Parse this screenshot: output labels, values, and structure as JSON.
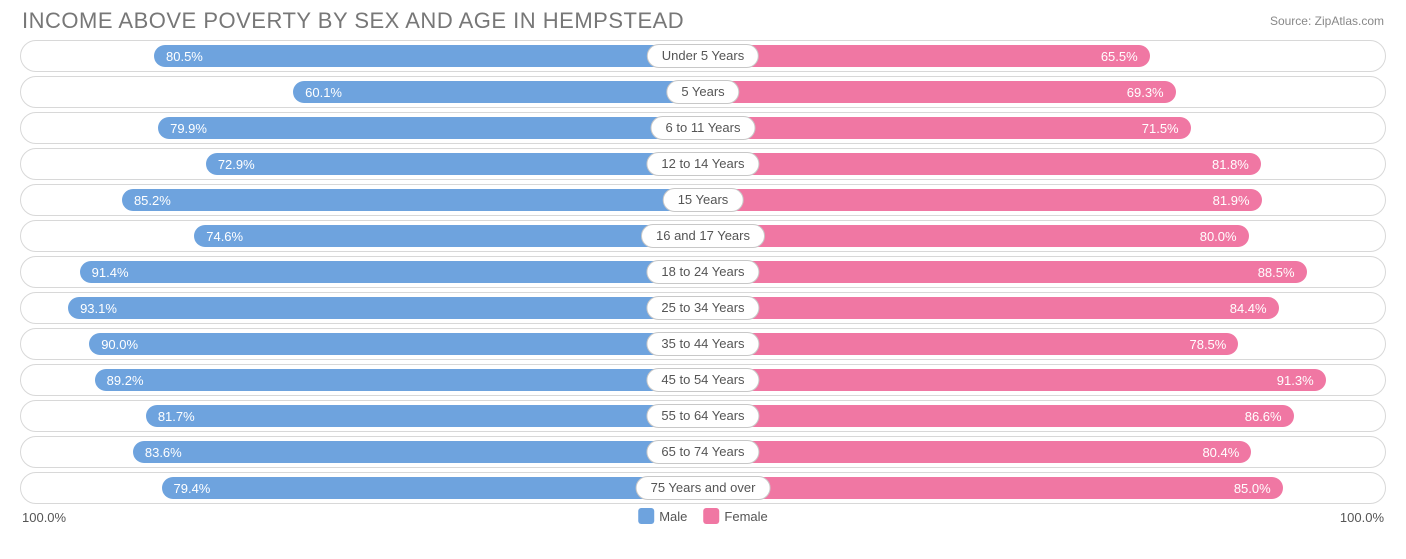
{
  "title": "INCOME ABOVE POVERTY BY SEX AND AGE IN HEMPSTEAD",
  "source": "Source: ZipAtlas.com",
  "axis": {
    "left": "100.0%",
    "right": "100.0%",
    "max": 100.0
  },
  "colors": {
    "male": "#6ea3de",
    "female": "#f077a3",
    "border": "#d8d8d8",
    "background": "#ffffff",
    "text": "#555555",
    "title": "#777777"
  },
  "legend": {
    "male": "Male",
    "female": "Female"
  },
  "rows": [
    {
      "category": "Under 5 Years",
      "male": 80.5,
      "female": 65.5,
      "male_label": "80.5%",
      "female_label": "65.5%"
    },
    {
      "category": "5 Years",
      "male": 60.1,
      "female": 69.3,
      "male_label": "60.1%",
      "female_label": "69.3%"
    },
    {
      "category": "6 to 11 Years",
      "male": 79.9,
      "female": 71.5,
      "male_label": "79.9%",
      "female_label": "71.5%"
    },
    {
      "category": "12 to 14 Years",
      "male": 72.9,
      "female": 81.8,
      "male_label": "72.9%",
      "female_label": "81.8%"
    },
    {
      "category": "15 Years",
      "male": 85.2,
      "female": 81.9,
      "male_label": "85.2%",
      "female_label": "81.9%"
    },
    {
      "category": "16 and 17 Years",
      "male": 74.6,
      "female": 80.0,
      "male_label": "74.6%",
      "female_label": "80.0%"
    },
    {
      "category": "18 to 24 Years",
      "male": 91.4,
      "female": 88.5,
      "male_label": "91.4%",
      "female_label": "88.5%"
    },
    {
      "category": "25 to 34 Years",
      "male": 93.1,
      "female": 84.4,
      "male_label": "93.1%",
      "female_label": "84.4%"
    },
    {
      "category": "35 to 44 Years",
      "male": 90.0,
      "female": 78.5,
      "male_label": "90.0%",
      "female_label": "78.5%"
    },
    {
      "category": "45 to 54 Years",
      "male": 89.2,
      "female": 91.3,
      "male_label": "89.2%",
      "female_label": "91.3%"
    },
    {
      "category": "55 to 64 Years",
      "male": 81.7,
      "female": 86.6,
      "male_label": "81.7%",
      "female_label": "86.6%"
    },
    {
      "category": "65 to 74 Years",
      "male": 83.6,
      "female": 80.4,
      "male_label": "83.6%",
      "female_label": "80.4%"
    },
    {
      "category": "75 Years and over",
      "male": 79.4,
      "female": 85.0,
      "male_label": "79.4%",
      "female_label": "85.0%"
    }
  ]
}
